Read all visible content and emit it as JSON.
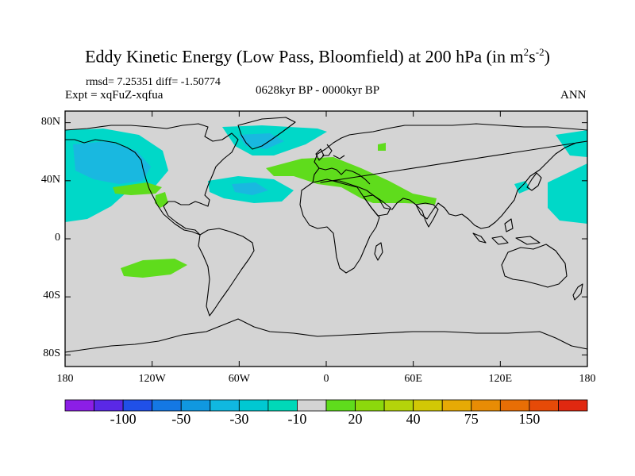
{
  "title": {
    "main": "Eddy Kinetic Energy (Low Pass, Bloomfield) at 200 hPa (in m",
    "sup1": "2",
    "mid": "s",
    "sup2": "-2",
    "end": ")"
  },
  "stats": "rmsd= 7.25351 diff= -1.50774",
  "expt": "Expt = xqFuZ-xqfua",
  "period": "0628kyr BP - 0000kyr BP",
  "season": "ANN",
  "map": {
    "lat_labels": [
      "80N",
      "40N",
      "0",
      "40S",
      "80S"
    ],
    "lat_values": [
      80,
      40,
      0,
      -40,
      -80
    ],
    "lon_labels": [
      "180",
      "120W",
      "60W",
      "0",
      "60E",
      "120E",
      "180"
    ],
    "lon_values": [
      -180,
      -120,
      -60,
      0,
      60,
      120,
      180
    ],
    "land_background": "#d4d4d4",
    "regions": [
      {
        "name": "north-pacific-cyan-region",
        "color": "#00d8c8",
        "value_range": "-30 to -10"
      },
      {
        "name": "north-pacific-blue-core",
        "color": "#19b8e0",
        "value_range": "-30"
      },
      {
        "name": "north-atlantic-cyan-region",
        "color": "#00d8c8",
        "value_range": "-30 to -10"
      },
      {
        "name": "western-atlantic-cyan-region",
        "color": "#00d8c8",
        "value_range": "-30 to -10"
      },
      {
        "name": "northwest-pacific-cyan-region",
        "color": "#00d8c8",
        "value_range": "-30 to -10"
      },
      {
        "name": "mediterranean-green-region",
        "color": "#5fdc1c",
        "value_range": "10 to 20"
      },
      {
        "name": "south-pacific-green-region",
        "color": "#5fdc1c",
        "value_range": "10 to 20"
      },
      {
        "name": "east-pacific-green-region",
        "color": "#5fdc1c",
        "value_range": "10 to 20"
      }
    ]
  },
  "colorbar": {
    "colors": [
      "#8c1ee6",
      "#5a28e6",
      "#2050e8",
      "#1478e4",
      "#1098e0",
      "#10b8e0",
      "#00c8d2",
      "#00d8b8",
      "#d4d4d4",
      "#5fdc1c",
      "#8cd80c",
      "#b4d40a",
      "#d2c805",
      "#e6aa05",
      "#e88c05",
      "#e86e05",
      "#e64a08",
      "#e02810"
    ],
    "labels": [
      "-100",
      "-50",
      "-30",
      "-10",
      "20",
      "40",
      "75",
      "150"
    ],
    "label_boundaries": [
      2,
      4,
      6,
      8,
      10,
      12,
      14,
      16
    ]
  }
}
